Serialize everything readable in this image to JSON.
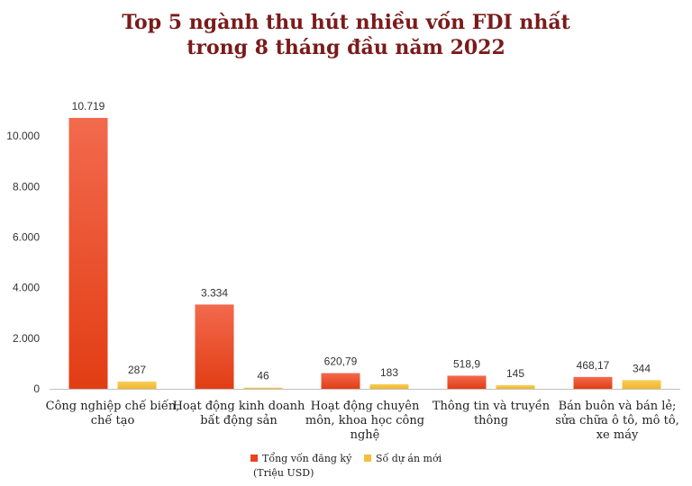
{
  "chart_data": {
    "type": "bar",
    "title_lines": [
      "Top 5 ngành thu hút nhiều vốn FDI nhất",
      "trong 8 tháng đầu năm 2022"
    ],
    "categories": [
      [
        "Công nghiệp chế biến,",
        "chế tạo"
      ],
      [
        "Hoạt động kinh doanh",
        "bất động sản"
      ],
      [
        "Hoạt động chuyên",
        "môn, khoa học công",
        "nghệ"
      ],
      [
        "Thông tin và truyền",
        "thông"
      ],
      [
        "Bán buôn và bán lẻ;",
        "sửa chữa ô tô, mô tô,",
        "xe máy"
      ]
    ],
    "series": [
      {
        "name_lines": [
          "Tổng vốn đăng ký",
          "(Triệu USD)"
        ],
        "color": "#e8431f",
        "values": [
          10719,
          3334,
          620.79,
          518.9,
          468.17
        ],
        "labels": [
          "10.719",
          "3.334",
          "620,79",
          "518,9",
          "468,17"
        ]
      },
      {
        "name_lines": [
          "Số dự án mới"
        ],
        "color": "#f4bf3a",
        "values": [
          287,
          46,
          183,
          145,
          344
        ],
        "labels": [
          "287",
          "46",
          "183",
          "145",
          "344"
        ]
      }
    ],
    "ylim": [
      0,
      12000
    ],
    "yticks": [
      0,
      2000,
      4000,
      6000,
      8000,
      10000
    ],
    "ytick_labels": [
      "0",
      "2.000",
      "4.000",
      "6.000",
      "8.000",
      "10.000"
    ],
    "grid": false,
    "legend_position": "bottom"
  }
}
